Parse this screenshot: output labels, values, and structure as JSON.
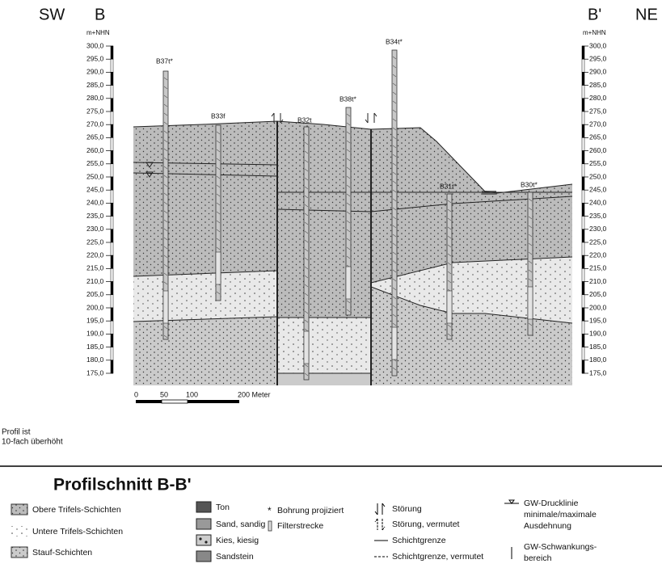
{
  "header": {
    "left_dir": "SW",
    "left_point": "B",
    "right_point": "B'",
    "right_dir": "NE"
  },
  "axes": {
    "unit": "m+NHN",
    "labels": [
      "300,0",
      "295,0",
      "290,0",
      "285,0",
      "280,0",
      "275,0",
      "270,0",
      "265,0",
      "260,0",
      "255,0",
      "250,0",
      "245,0",
      "240,0",
      "235,0",
      "230,0",
      "225,0",
      "220,0",
      "215,0",
      "210,0",
      "205,0",
      "200,0",
      "195,0",
      "190,0",
      "185,0",
      "180,0",
      "175,0"
    ]
  },
  "boreholes": [
    {
      "label": "B37t*"
    },
    {
      "label": "B33f"
    },
    {
      "label": "B32t"
    },
    {
      "label": "B38t*"
    },
    {
      "label": "B34t*"
    },
    {
      "label": "B31t*"
    },
    {
      "label": "B30t*"
    }
  ],
  "scale": {
    "ticks": [
      "0",
      "50",
      "100",
      "200 Meter"
    ]
  },
  "note": [
    "Profil ist",
    "10-fach überhöht"
  ],
  "legend": {
    "title": "Profilschnitt B-B'",
    "units": [
      "Obere Trifels-Schichten",
      "Untere Trifels-Schichten",
      "Stauf-Schichten"
    ],
    "materials": [
      "Ton",
      "Sand, sandig",
      "Kies, kiesig",
      "Sandstein"
    ],
    "symbols": [
      "Bohrung projiziert",
      "Filterstrecke",
      "Störung",
      "Störung, vermutet",
      "Schichtgrenze",
      "Schichtgrenze, vermutet"
    ],
    "gw_line": [
      "GW-Drucklinie",
      "minimale/maximale",
      "Ausdehnung"
    ],
    "gw_range": [
      "GW-Schwankungs-",
      "bereich"
    ]
  }
}
